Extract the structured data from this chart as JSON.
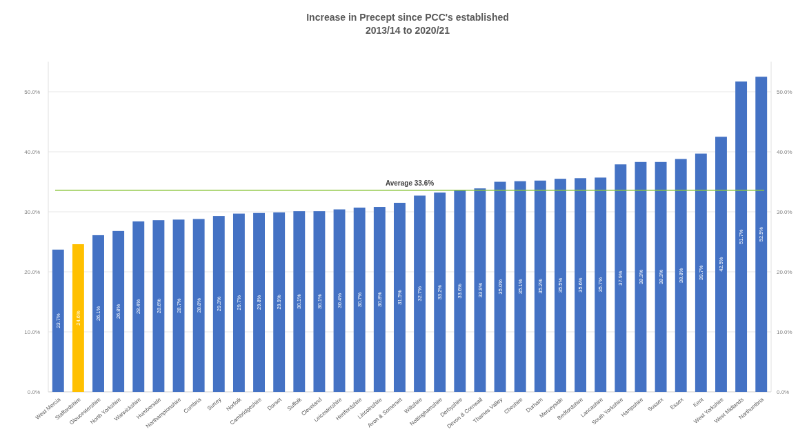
{
  "chart_data": {
    "type": "bar",
    "title": "Increase in Precept since PCC's established\n2013/14 to 2020/21",
    "categories": [
      "West Mercia",
      "Staffordshire",
      "Gloucestershire",
      "North Yorkshire",
      "Warwickshire",
      "Humberside",
      "Northamptonshire",
      "Cumbria",
      "Surrey",
      "Norfolk",
      "Cambridgeshire",
      "Dorset",
      "Suffolk",
      "Cleveland",
      "Leicestershire",
      "Hertfordshire",
      "Lincolnshire",
      "Avon & Somerset",
      "Wiltshire",
      "Nottinghamshire",
      "Derbyshire",
      "Devon & Cornwall",
      "Thames Valley",
      "Cheshire",
      "Durham",
      "Merseyside",
      "Bedfordshire",
      "Lancashire",
      "South Yorkshire",
      "Hampshire",
      "Sussex",
      "Essex",
      "Kent",
      "West Yorkshire",
      "West Midlands",
      "Northumbria"
    ],
    "values": [
      23.7,
      24.6,
      26.1,
      26.8,
      28.4,
      28.6,
      28.7,
      28.8,
      29.3,
      29.7,
      29.8,
      29.9,
      30.1,
      30.1,
      30.4,
      30.7,
      30.8,
      31.5,
      32.7,
      33.2,
      33.6,
      33.9,
      35.0,
      35.1,
      35.2,
      35.5,
      35.6,
      35.7,
      37.9,
      38.3,
      38.3,
      38.8,
      39.7,
      42.5,
      51.7,
      52.5
    ],
    "value_labels": [
      "23.7%",
      "24.6%",
      "26.1%",
      "26.8%",
      "28.4%",
      "28.6%",
      "28.7%",
      "28.8%",
      "29.3%",
      "29.7%",
      "29.8%",
      "29.9%",
      "30.1%",
      "30.1%",
      "30.4%",
      "30.7%",
      "30.8%",
      "31.5%",
      "32.7%",
      "33.2%",
      "33.6%",
      "33.9%",
      "35.0%",
      "35.1%",
      "35.2%",
      "35.5%",
      "35.6%",
      "35.7%",
      "37.9%",
      "38.3%",
      "38.3%",
      "38.8%",
      "39.7%",
      "42.5%",
      "51.7%",
      "52.5%"
    ],
    "colors": [
      "#4472c4",
      "#ffc000",
      "#4472c4",
      "#4472c4",
      "#4472c4",
      "#4472c4",
      "#4472c4",
      "#4472c4",
      "#4472c4",
      "#4472c4",
      "#4472c4",
      "#4472c4",
      "#4472c4",
      "#4472c4",
      "#4472c4",
      "#4472c4",
      "#4472c4",
      "#4472c4",
      "#4472c4",
      "#4472c4",
      "#4472c4",
      "#4472c4",
      "#4472c4",
      "#4472c4",
      "#4472c4",
      "#4472c4",
      "#4472c4",
      "#4472c4",
      "#4472c4",
      "#4472c4",
      "#4472c4",
      "#4472c4",
      "#4472c4",
      "#4472c4",
      "#4472c4",
      "#4472c4"
    ],
    "ylim": [
      0,
      55
    ],
    "yticks": [
      {
        "value": 0,
        "label": "0.0%"
      },
      {
        "value": 10,
        "label": "10.0%"
      },
      {
        "value": 20,
        "label": "20.0%"
      },
      {
        "value": 30,
        "label": "30.0%"
      },
      {
        "value": 40,
        "label": "40.0%"
      },
      {
        "value": 50,
        "label": "50.0%"
      }
    ],
    "y2lim": [
      0,
      55
    ],
    "y2ticks": [
      {
        "value": 0,
        "label": "0.0%"
      },
      {
        "value": 10,
        "label": "10.0%"
      },
      {
        "value": 20,
        "label": "20.0%"
      },
      {
        "value": 30,
        "label": "30.0%"
      },
      {
        "value": 40,
        "label": "40.0%"
      },
      {
        "value": 50,
        "label": "50.0%"
      }
    ],
    "ref_lines": [
      {
        "axis": "y",
        "value": 33.6,
        "label": "Average 33.6%",
        "color": "#8dc63f"
      }
    ],
    "grid": "y"
  }
}
